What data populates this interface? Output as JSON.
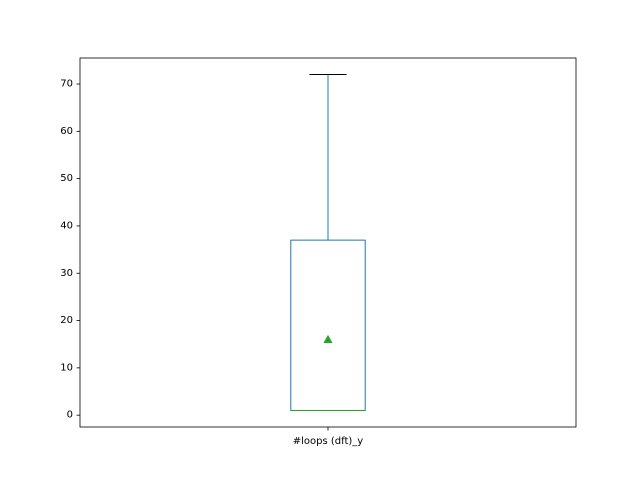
{
  "chart_data": {
    "type": "box",
    "categories": [
      "#loops (dft)_y"
    ],
    "boxes": [
      {
        "category": "#loops (dft)_y",
        "whisker_low": 1,
        "q1": 1,
        "median": 1,
        "q3": 37,
        "whisker_high": 72,
        "mean": 16
      }
    ],
    "ylim": [
      -2.5,
      75.5
    ],
    "yticks": [
      0,
      10,
      20,
      30,
      40,
      50,
      60,
      70
    ],
    "title": "",
    "xlabel": "",
    "ylabel": "",
    "grid": false,
    "colors": {
      "box": "#1f77b4",
      "median": "#2ca02c",
      "mean_marker": "#2ca02c",
      "cap": "#000000",
      "axes": "#000000"
    }
  }
}
